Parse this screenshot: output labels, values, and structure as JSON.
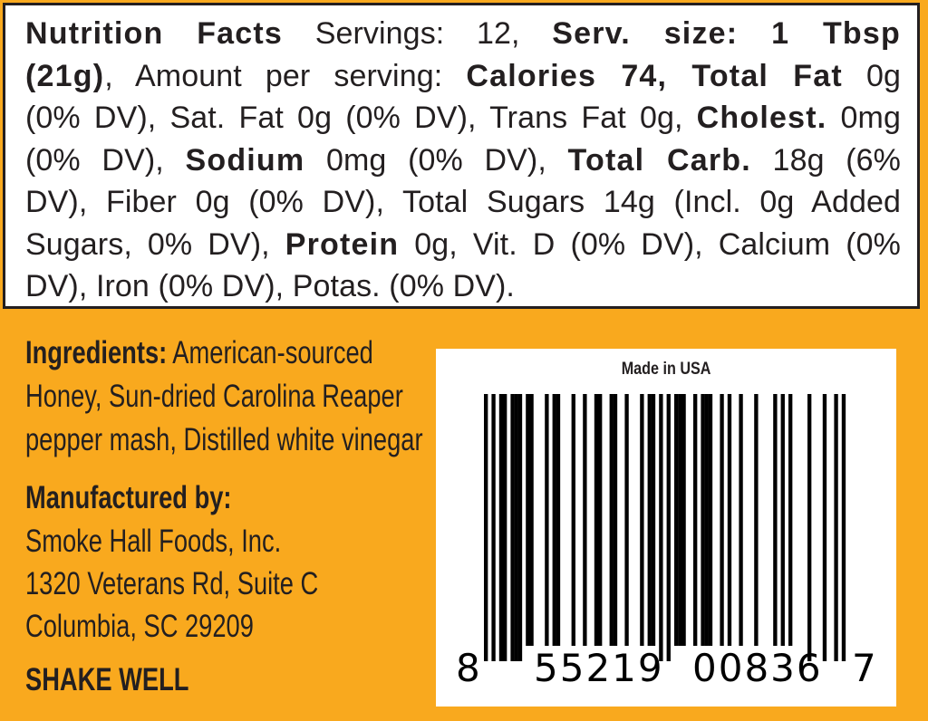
{
  "nutrition_facts": {
    "lines": [
      [
        {
          "t": "Nutrition Facts",
          "b": true
        },
        {
          "t": " Servings: 12, ",
          "b": false
        },
        {
          "t": "Serv. size: 1 Tbsp",
          "b": true
        }
      ],
      [
        {
          "t": "(21g)",
          "b": true
        },
        {
          "t": ", Amount per serving: ",
          "b": false
        },
        {
          "t": "Calories 74, Total Fat",
          "b": true
        },
        {
          "t": " 0g",
          "b": false
        }
      ],
      [
        {
          "t": "(0% DV), Sat. Fat 0g (0% DV), Trans Fat 0g, ",
          "b": false
        },
        {
          "t": "Cholest.",
          "b": true
        },
        {
          "t": " 0mg",
          "b": false
        }
      ],
      [
        {
          "t": "(0% DV), ",
          "b": false
        },
        {
          "t": "Sodium",
          "b": true
        },
        {
          "t": " 0mg (0% DV), ",
          "b": false
        },
        {
          "t": "Total Carb.",
          "b": true
        },
        {
          "t": " 18g (6%",
          "b": false
        }
      ],
      [
        {
          "t": "DV), Fiber 0g (0% DV), Total Sugars 14g (Incl. 0g Added",
          "b": false
        }
      ],
      [
        {
          "t": "Sugars, 0% DV), ",
          "b": false
        },
        {
          "t": "Protein",
          "b": true
        },
        {
          "t": " 0g, Vit. D (0% DV), Calcium (0%",
          "b": false
        }
      ],
      [
        {
          "t": "DV), Iron (0% DV), Potas. (0% DV).",
          "b": false
        }
      ]
    ]
  },
  "ingredients": {
    "label": "Ingredients:",
    "lines": [
      " American-sourced",
      "Honey, Sun-dried Carolina Reaper",
      "pepper mash, Distilled white vinegar"
    ]
  },
  "manufacturer": {
    "label": "Manufactured by:",
    "name": "Smoke Hall Foods, Inc.",
    "address1": "1320 Veterans Rd, Suite C",
    "address2": "Columbia, SC 29209"
  },
  "instruction": "SHAKE WELL",
  "barcode": {
    "caption": "Made in USA",
    "digits": "855219008367",
    "groups": [
      "8",
      "55219",
      "00836",
      "7"
    ]
  },
  "colors": {
    "background": "#F9A91E",
    "text": "#231f20",
    "panel": "#ffffff"
  }
}
